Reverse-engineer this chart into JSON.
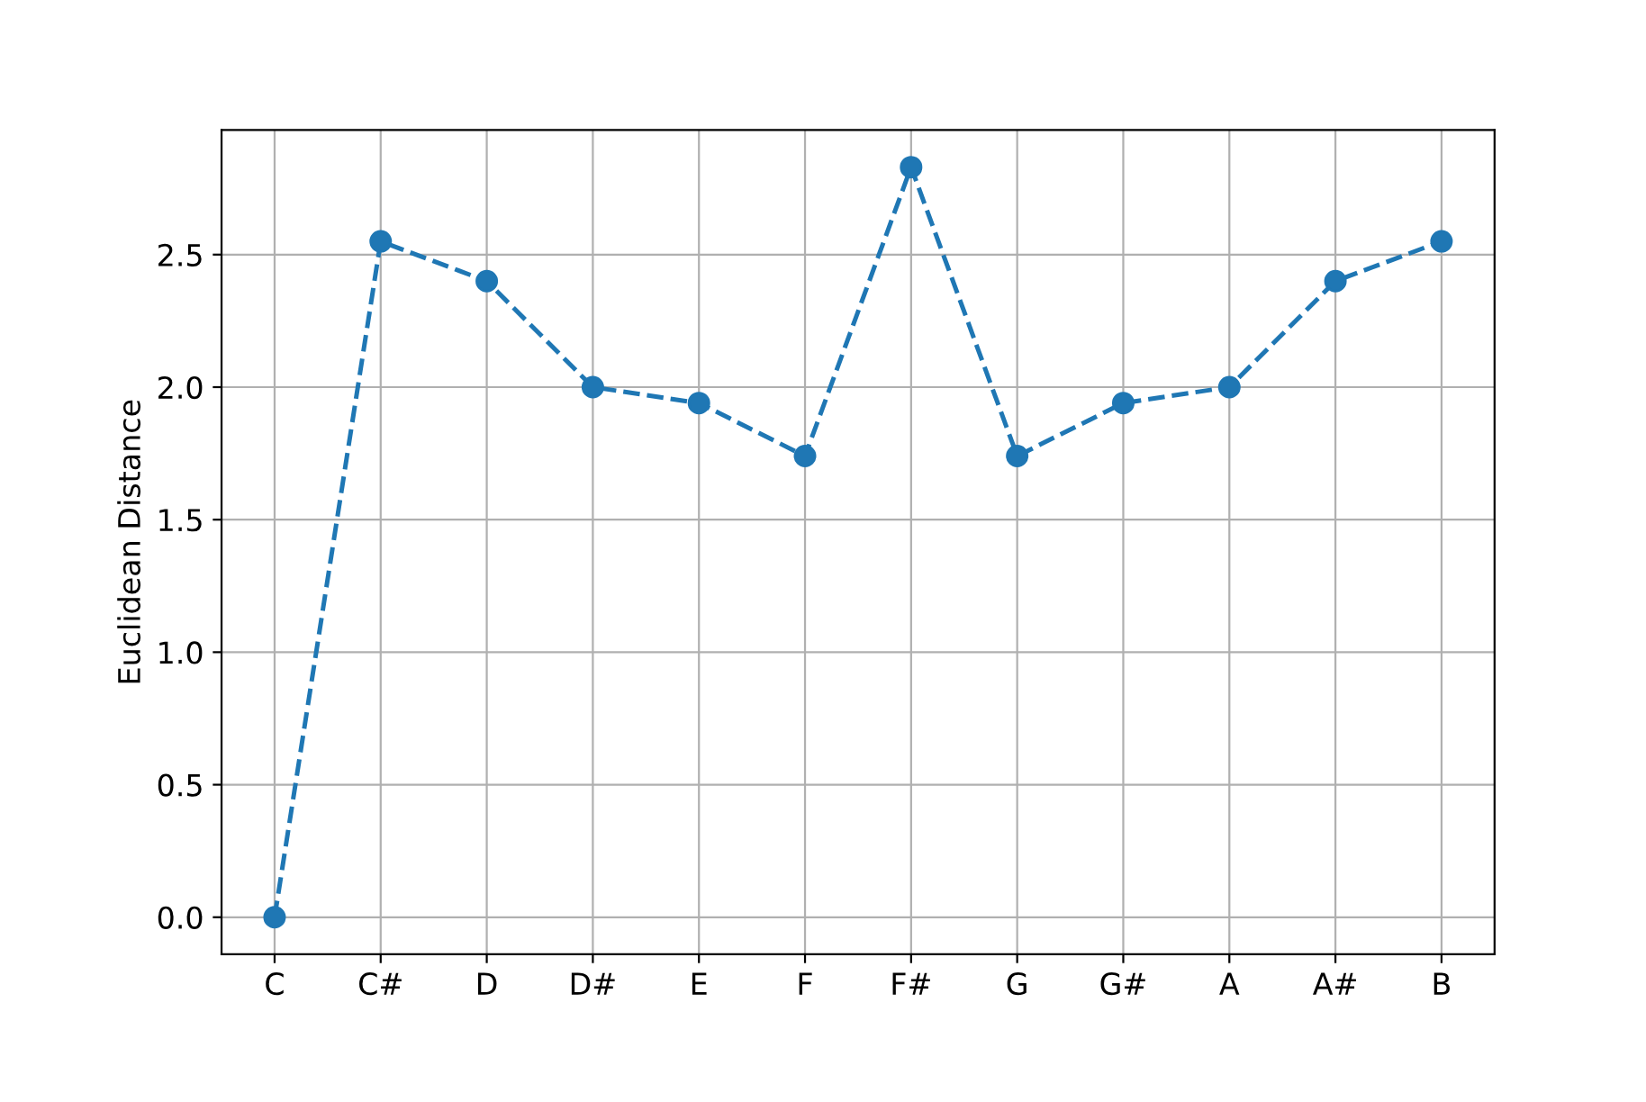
{
  "chart_data": {
    "type": "line",
    "categories": [
      "C",
      "C#",
      "D",
      "D#",
      "E",
      "F",
      "F#",
      "G",
      "G#",
      "A",
      "A#",
      "B"
    ],
    "series": [
      {
        "color": "#1f77b4",
        "values": [
          0.0,
          2.55,
          2.4,
          2.0,
          1.94,
          1.74,
          2.83,
          1.74,
          1.94,
          2.0,
          2.4,
          2.55
        ]
      }
    ],
    "ylabel": "Euclidean Distance",
    "ylim": [
      -0.14,
      2.97
    ],
    "yticks": [
      {
        "value": 0,
        "label": "0.0"
      },
      {
        "value": 0.5,
        "label": "0.5"
      },
      {
        "value": 1,
        "label": "1.0"
      },
      {
        "value": 1.5,
        "label": "1.5"
      },
      {
        "value": 2,
        "label": "2.0"
      },
      {
        "value": 2.5,
        "label": "2.5"
      }
    ],
    "grid": true,
    "marker": "circle",
    "line_style": "dashed"
  }
}
